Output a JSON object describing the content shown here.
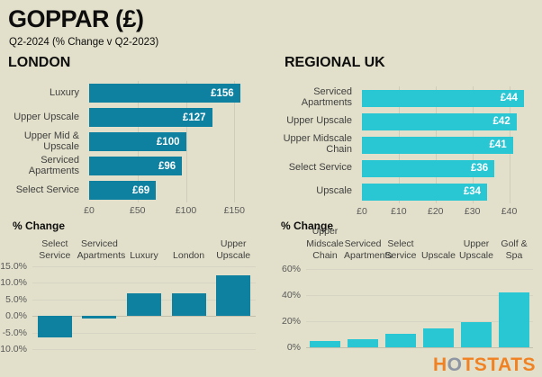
{
  "header": {
    "title": "GOPPAR (£)",
    "subtitle": "Q2-2024 (% Change v Q2-2023)"
  },
  "sections": {
    "london": {
      "title": "LONDON"
    },
    "regional": {
      "title": "REGIONAL UK"
    }
  },
  "pct_change_title": "% Change",
  "logo": {
    "text": "HOTSTATS",
    "h": "H",
    "o": "O",
    "rest": "TSTATS"
  },
  "colors": {
    "background": "#e2e0ca",
    "london_bar": "#0e81a0",
    "regional_bar": "#29c6d4",
    "logo_orange": "#f08224",
    "logo_gray": "#8e96a3"
  },
  "chart_data": [
    {
      "id": "london-goppar",
      "type": "bar",
      "orientation": "horizontal",
      "title": "LONDON",
      "categories": [
        "Luxury",
        "Upper Upscale",
        "Upper Mid & Upscale",
        "Serviced Apartments",
        "Select Service"
      ],
      "values": [
        156,
        127,
        100,
        96,
        69
      ],
      "data_labels": [
        "£156",
        "£127",
        "£100",
        "£96",
        "£69"
      ],
      "xlim": [
        0,
        160
      ],
      "xticks": [
        {
          "v": 0,
          "label": "£0"
        },
        {
          "v": 50,
          "label": "£50"
        },
        {
          "v": 100,
          "label": "£100"
        },
        {
          "v": 150,
          "label": "£150"
        }
      ],
      "grid": true,
      "bar_color": "#0e81a0"
    },
    {
      "id": "regional-goppar",
      "type": "bar",
      "orientation": "horizontal",
      "title": "REGIONAL UK",
      "categories": [
        "Serviced Apartments",
        "Upper Upscale",
        "Upper Midscale Chain",
        "Select Service",
        "Upscale"
      ],
      "values": [
        44,
        42,
        41,
        36,
        34
      ],
      "data_labels": [
        "£44",
        "£42",
        "£41",
        "£36",
        "£34"
      ],
      "xlim": [
        0,
        45
      ],
      "xticks": [
        {
          "v": 0,
          "label": "£0"
        },
        {
          "v": 10,
          "label": "£10"
        },
        {
          "v": 20,
          "label": "£20"
        },
        {
          "v": 30,
          "label": "£30"
        },
        {
          "v": 40,
          "label": "£40"
        }
      ],
      "grid": true,
      "bar_color": "#29c6d4"
    },
    {
      "id": "london-pct",
      "type": "bar",
      "orientation": "vertical",
      "title": "% Change",
      "categories": [
        "Select Service",
        "Serviced Apartments",
        "Luxury",
        "London",
        "Upper Upscale"
      ],
      "category_lines": [
        [
          "Select",
          "Service"
        ],
        [
          "Serviced",
          "Apartments"
        ],
        [
          "Luxury"
        ],
        [
          "London"
        ],
        [
          "Upper",
          "Upscale"
        ]
      ],
      "values": [
        -6.5,
        -0.8,
        6.8,
        6.8,
        12.3
      ],
      "ylim": [
        -10,
        15
      ],
      "yticks": [
        {
          "v": 15,
          "label": "15.0%"
        },
        {
          "v": 10,
          "label": "10.0%"
        },
        {
          "v": 5,
          "label": "5.0%"
        },
        {
          "v": 0,
          "label": "0.0%"
        },
        {
          "v": -5,
          "label": "-5.0%"
        },
        {
          "v": -10,
          "label": "-10.0%"
        }
      ],
      "grid": true,
      "bar_color": "#0e81a0"
    },
    {
      "id": "regional-pct",
      "type": "bar",
      "orientation": "vertical",
      "title": "% Change",
      "categories": [
        "Upper Midscale Chain",
        "Serviced Apartments",
        "Select Service",
        "Upscale",
        "Upper Upscale",
        "Golf & Spa"
      ],
      "category_lines": [
        [
          "Upper",
          "Midscale",
          "Chain"
        ],
        [
          "Serviced",
          "Apartments"
        ],
        [
          "Select",
          "Service"
        ],
        [
          "Upscale"
        ],
        [
          "Upper",
          "Upscale"
        ],
        [
          "Golf & Spa"
        ]
      ],
      "values": [
        5,
        6.5,
        10,
        14.5,
        19,
        42
      ],
      "ylim": [
        0,
        62
      ],
      "yticks": [
        {
          "v": 60,
          "label": "60%"
        },
        {
          "v": 40,
          "label": "40%"
        },
        {
          "v": 20,
          "label": "20%"
        },
        {
          "v": 0,
          "label": "0%"
        }
      ],
      "grid": true,
      "bar_color": "#29c6d4"
    }
  ]
}
